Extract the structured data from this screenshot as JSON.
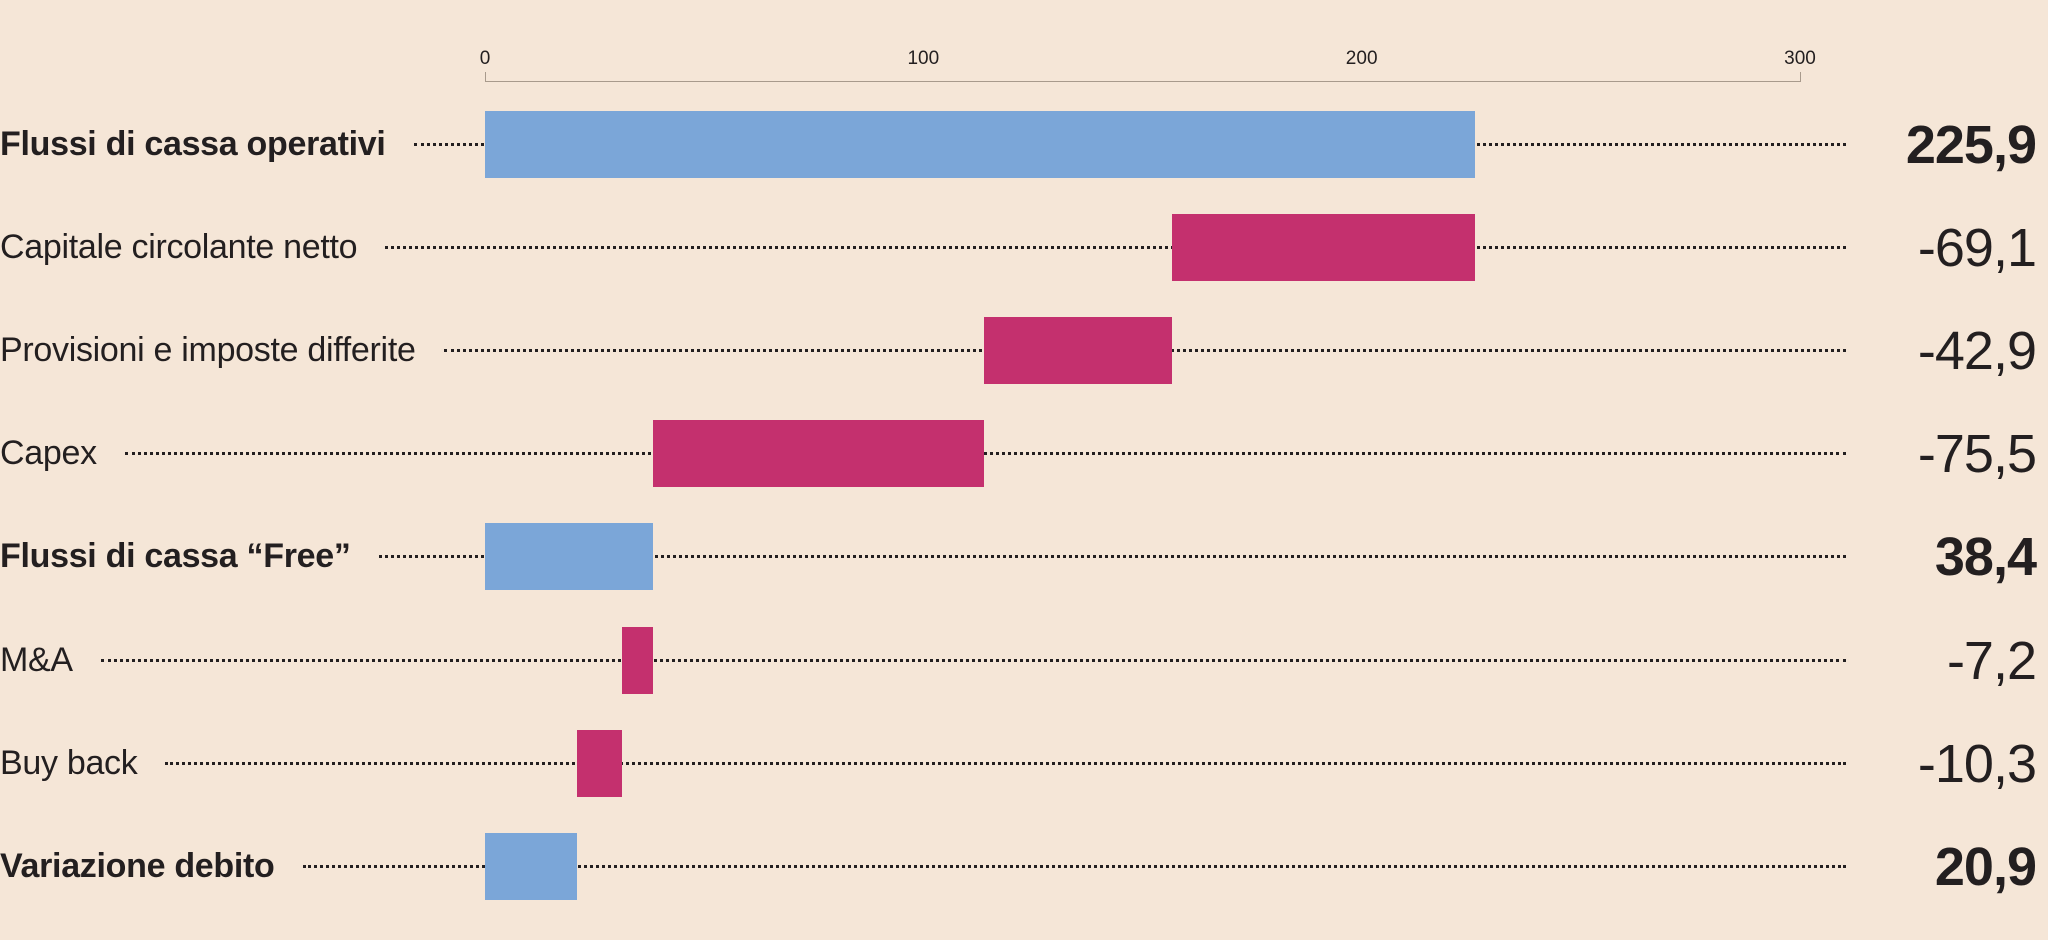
{
  "chart_data": {
    "type": "bar",
    "subtype": "waterfall",
    "xlim": [
      0,
      300
    ],
    "ticks": [
      "0",
      "100",
      "200",
      "300"
    ],
    "tick_values": [
      0,
      100,
      200,
      300
    ],
    "grid": false,
    "colors": {
      "total": "#7ba6d8",
      "negative": "#c4306e"
    },
    "categories": [
      "Flussi di cassa operativi",
      "Capitale circolante netto",
      "Provisioni e imposte differite",
      "Capex",
      "Flussi di cassa “Free”",
      "M&A",
      "Buy back",
      "Variazione debito"
    ],
    "values": [
      225.9,
      -69.1,
      -42.9,
      -75.5,
      38.4,
      -7.2,
      -10.3,
      20.9
    ],
    "value_labels": [
      "225,9",
      "-69,1",
      "-42,9",
      "-75,5",
      "38,4",
      "-7,2",
      "-10,3",
      "20,9"
    ],
    "is_total": [
      true,
      false,
      false,
      false,
      true,
      false,
      false,
      true
    ]
  }
}
